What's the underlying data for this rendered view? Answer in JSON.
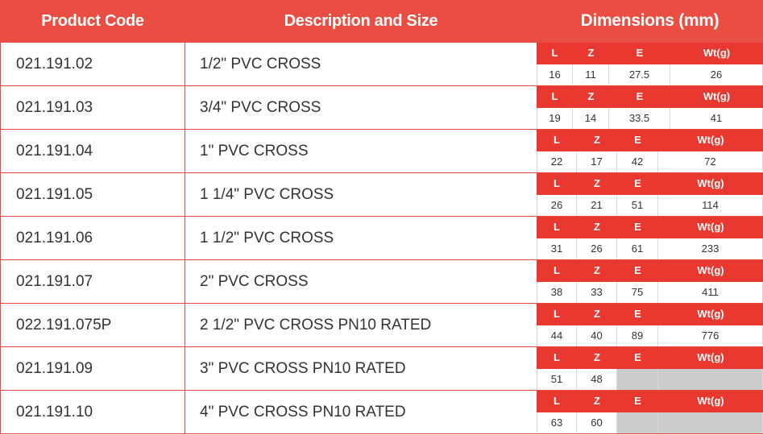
{
  "header": {
    "product_code": "Product Code",
    "description": "Description and Size",
    "dimensions": "Dimensions (mm)"
  },
  "dim_labels": [
    "L",
    "Z",
    "E",
    "Wt(g)"
  ],
  "rows": [
    {
      "code": "021.191.02",
      "desc": "1/2\" PVC CROSS",
      "dims": [
        "16",
        "11",
        "27.5",
        "26"
      ]
    },
    {
      "code": "021.191.03",
      "desc": "3/4\" PVC CROSS",
      "dims": [
        "19",
        "14",
        "33.5",
        "41"
      ]
    },
    {
      "code": "021.191.04",
      "desc": "1\" PVC CROSS",
      "dims": [
        "22",
        "17",
        "42",
        "72"
      ]
    },
    {
      "code": "021.191.05",
      "desc": "1 1/4\" PVC CROSS",
      "dims": [
        "26",
        "21",
        "51",
        "114"
      ]
    },
    {
      "code": "021.191.06",
      "desc": "1 1/2\" PVC CROSS",
      "dims": [
        "31",
        "26",
        "61",
        "233"
      ]
    },
    {
      "code": "021.191.07",
      "desc": "2\" PVC CROSS",
      "dims": [
        "38",
        "33",
        "75",
        "411"
      ]
    },
    {
      "code": "022.191.075P",
      "desc": "2 1/2\" PVC CROSS PN10 RATED",
      "dims": [
        "44",
        "40",
        "89",
        "776"
      ]
    },
    {
      "code": "021.191.09",
      "desc": "3\" PVC CROSS PN10 RATED",
      "dims": [
        "51",
        "48",
        "",
        ""
      ]
    },
    {
      "code": "021.191.10",
      "desc": "4\" PVC CROSS PN10 RATED",
      "dims": [
        "63",
        "60",
        "",
        ""
      ]
    }
  ]
}
